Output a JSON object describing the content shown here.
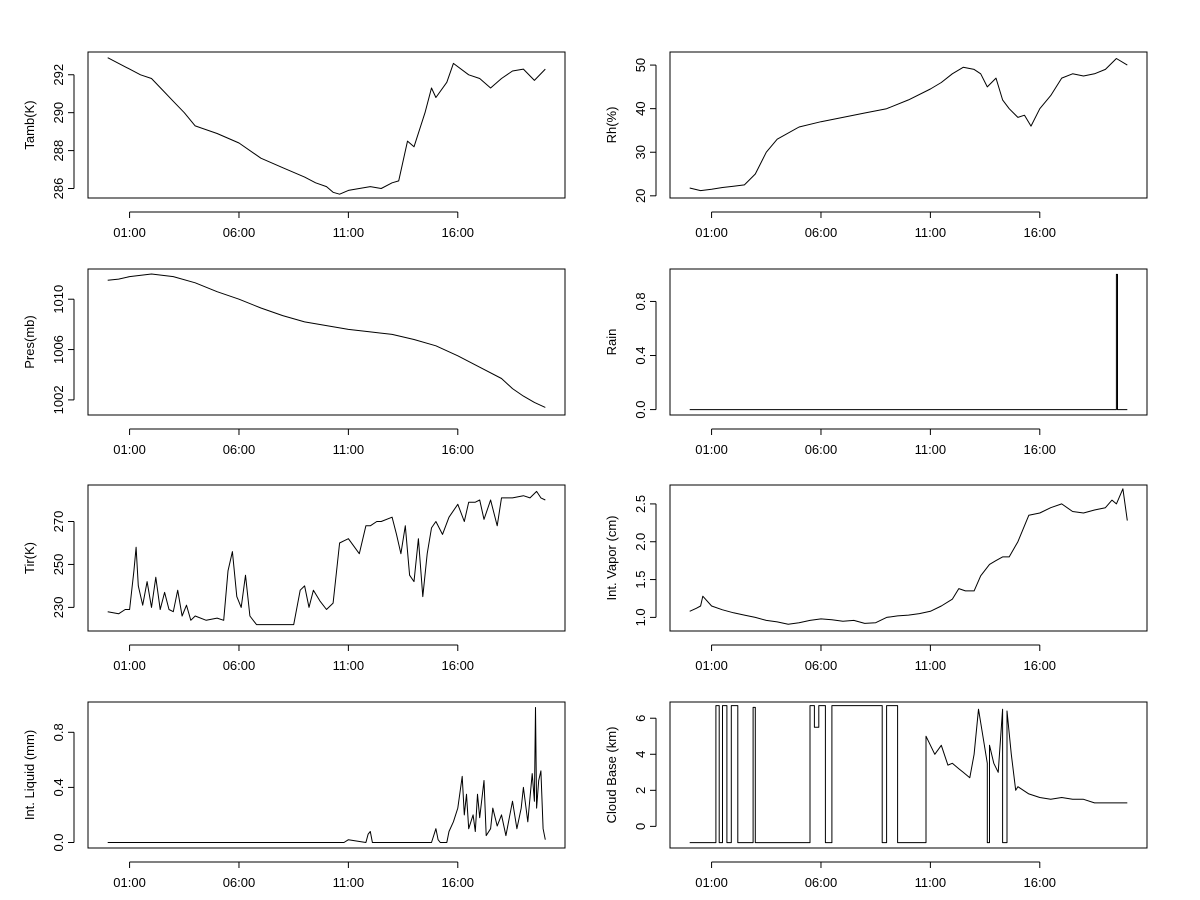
{
  "chart_data": [
    {
      "type": "line",
      "ylabel": "Tamb(K)",
      "x_ticks": [
        "01:00",
        "06:00",
        "11:00",
        "16:00"
      ],
      "y_ticks": [
        "286",
        "288",
        "290",
        "292"
      ],
      "ylim": [
        285.5,
        293.2
      ],
      "series": [
        {
          "x": [
            0.0,
            1.0,
            1.5,
            2.0,
            2.5,
            3.0,
            3.5,
            4.0,
            5.0,
            6.0,
            7.0,
            8.0,
            9.0,
            9.5,
            10.0,
            10.3,
            10.6,
            11.0,
            11.5,
            12.0,
            12.5,
            13.0,
            13.3,
            13.7,
            14.0,
            14.5,
            14.8,
            15.0,
            15.5,
            15.8,
            16.5,
            17.0,
            17.5,
            18.0,
            18.5,
            19.0,
            19.5,
            20.0
          ],
          "y": [
            292.9,
            292.3,
            292.0,
            291.8,
            291.2,
            290.6,
            290.0,
            289.3,
            288.9,
            288.4,
            287.6,
            287.1,
            286.6,
            286.3,
            286.1,
            285.8,
            285.7,
            285.9,
            286.0,
            286.1,
            286.0,
            286.3,
            286.4,
            288.5,
            288.2,
            290.0,
            291.3,
            290.8,
            291.6,
            292.6,
            292.0,
            291.8,
            291.3,
            291.8,
            292.2,
            292.3,
            291.7,
            292.3
          ]
        }
      ]
    },
    {
      "type": "line",
      "ylabel": "Rh(%)",
      "x_ticks": [
        "01:00",
        "06:00",
        "11:00",
        "16:00"
      ],
      "y_ticks": [
        "20",
        "30",
        "40",
        "50"
      ],
      "ylim": [
        19.5,
        53
      ],
      "series": [
        {
          "x": [
            0.0,
            0.5,
            1.0,
            1.5,
            2.0,
            2.5,
            3.0,
            3.5,
            4.0,
            5.0,
            6.0,
            7.0,
            8.0,
            9.0,
            10.0,
            11.0,
            11.5,
            12.0,
            12.5,
            13.0,
            13.3,
            13.6,
            14.0,
            14.3,
            14.6,
            15.0,
            15.3,
            15.6,
            16.0,
            16.5,
            17.0,
            17.5,
            18.0,
            18.5,
            19.0,
            19.5,
            20.0
          ],
          "y": [
            21.8,
            21.2,
            21.5,
            21.9,
            22.2,
            22.5,
            25.0,
            30.0,
            33.0,
            35.8,
            37.0,
            38.0,
            39.0,
            40.0,
            42.0,
            44.5,
            46.0,
            48.0,
            49.5,
            49.0,
            48.0,
            45.0,
            47.0,
            42.0,
            40.0,
            38.0,
            38.5,
            36.0,
            40.0,
            43.0,
            47.0,
            48.0,
            47.5,
            48.0,
            49.0,
            51.5,
            50.0
          ]
        }
      ]
    },
    {
      "type": "line",
      "ylabel": "Pres(mb)",
      "x_ticks": [
        "01:00",
        "06:00",
        "11:00",
        "16:00"
      ],
      "y_ticks": [
        "1002",
        "1006",
        "1010"
      ],
      "ylim": [
        1000.8,
        1012.4
      ],
      "series": [
        {
          "x": [
            0.0,
            0.5,
            1.0,
            2.0,
            3.0,
            4.0,
            5.0,
            6.0,
            7.0,
            8.0,
            9.0,
            10.0,
            11.0,
            12.0,
            13.0,
            14.0,
            15.0,
            16.0,
            17.0,
            18.0,
            18.5,
            19.0,
            19.5,
            20.0
          ],
          "y": [
            1011.5,
            1011.6,
            1011.8,
            1012.0,
            1011.8,
            1011.3,
            1010.6,
            1010.0,
            1009.3,
            1008.7,
            1008.2,
            1007.9,
            1007.6,
            1007.4,
            1007.2,
            1006.8,
            1006.3,
            1005.5,
            1004.6,
            1003.7,
            1002.9,
            1002.3,
            1001.8,
            1001.4
          ]
        }
      ]
    },
    {
      "type": "line",
      "ylabel": "Rain",
      "x_ticks": [
        "01:00",
        "06:00",
        "11:00",
        "16:00"
      ],
      "y_ticks": [
        "0.0",
        "0.4",
        "0.8"
      ],
      "ylim": [
        -0.04,
        1.04
      ],
      "series": [
        {
          "x": [
            0.0,
            19.5,
            19.5,
            19.55,
            19.55,
            20.0
          ],
          "y": [
            0.0,
            0.0,
            1.0,
            1.0,
            0.0,
            0.0
          ]
        }
      ]
    },
    {
      "type": "line",
      "ylabel": "Tir(K)",
      "x_ticks": [
        "01:00",
        "06:00",
        "11:00",
        "16:00"
      ],
      "y_ticks": [
        "230",
        "250",
        "270"
      ],
      "ylim": [
        219,
        287
      ],
      "series": [
        {
          "x": [
            0.0,
            0.5,
            0.8,
            1.0,
            1.2,
            1.3,
            1.4,
            1.6,
            1.8,
            2.0,
            2.2,
            2.4,
            2.6,
            2.8,
            3.0,
            3.2,
            3.4,
            3.6,
            3.8,
            4.0,
            4.5,
            5.0,
            5.3,
            5.5,
            5.7,
            5.9,
            6.1,
            6.3,
            6.5,
            6.8,
            7.0,
            7.5,
            8.0,
            8.5,
            8.8,
            9.0,
            9.2,
            9.4,
            9.7,
            10.0,
            10.3,
            10.6,
            10.8,
            11.0,
            11.5,
            11.8,
            12.0,
            12.3,
            12.5,
            13.0,
            13.2,
            13.4,
            13.6,
            13.8,
            14.0,
            14.2,
            14.4,
            14.6,
            14.8,
            15.0,
            15.3,
            15.6,
            16.0,
            16.3,
            16.5,
            16.8,
            17.0,
            17.2,
            17.5,
            17.8,
            18.0,
            18.5,
            19.0,
            19.3,
            19.6,
            19.8,
            20.0
          ],
          "y": [
            228,
            227,
            229,
            229,
            247,
            258,
            240,
            231,
            242,
            230,
            244,
            229,
            237,
            229,
            228,
            238,
            226,
            231,
            224,
            226,
            224,
            225,
            224,
            247,
            256,
            235,
            230,
            245,
            226,
            222,
            222,
            222,
            222,
            222,
            238,
            240,
            230,
            238,
            233,
            229,
            232,
            260,
            261,
            262,
            255,
            268,
            268,
            270,
            270,
            272,
            264,
            255,
            268,
            245,
            242,
            262,
            235,
            255,
            267,
            270,
            264,
            272,
            278,
            270,
            279,
            279,
            280,
            271,
            280,
            268,
            281,
            281,
            282,
            281,
            284,
            281,
            280
          ]
        }
      ]
    },
    {
      "type": "line",
      "ylabel": "Int. Vapor (cm)",
      "x_ticks": [
        "01:00",
        "06:00",
        "11:00",
        "16:00"
      ],
      "y_ticks": [
        "1.0",
        "1.5",
        "2.0",
        "2.5"
      ],
      "ylim": [
        0.82,
        2.75
      ],
      "series": [
        {
          "x": [
            0.0,
            0.3,
            0.5,
            0.6,
            1.0,
            1.5,
            2.0,
            2.5,
            3.0,
            3.5,
            4.0,
            4.5,
            5.0,
            5.5,
            6.0,
            6.5,
            7.0,
            7.5,
            8.0,
            8.5,
            9.0,
            9.5,
            10.0,
            10.5,
            11.0,
            11.5,
            12.0,
            12.3,
            12.6,
            13.0,
            13.3,
            13.7,
            14.0,
            14.3,
            14.6,
            15.0,
            15.5,
            16.0,
            16.5,
            17.0,
            17.5,
            18.0,
            18.5,
            19.0,
            19.3,
            19.5,
            19.8,
            20.0
          ],
          "y": [
            1.08,
            1.12,
            1.15,
            1.28,
            1.15,
            1.1,
            1.06,
            1.03,
            1.0,
            0.96,
            0.94,
            0.91,
            0.93,
            0.96,
            0.98,
            0.97,
            0.95,
            0.96,
            0.92,
            0.93,
            1.0,
            1.02,
            1.03,
            1.05,
            1.08,
            1.15,
            1.24,
            1.38,
            1.35,
            1.35,
            1.55,
            1.7,
            1.75,
            1.8,
            1.8,
            2.0,
            2.35,
            2.38,
            2.45,
            2.5,
            2.4,
            2.38,
            2.42,
            2.45,
            2.55,
            2.5,
            2.7,
            2.28
          ]
        }
      ]
    },
    {
      "type": "line",
      "ylabel": "Int. Liquid (mm)",
      "x_ticks": [
        "01:00",
        "06:00",
        "11:00",
        "16:00"
      ],
      "y_ticks": [
        "0.0",
        "0.4",
        "0.8"
      ],
      "ylim": [
        -0.04,
        1.02
      ],
      "series": [
        {
          "x": [
            0.0,
            10.8,
            11.0,
            11.8,
            11.9,
            12.0,
            12.1,
            14.8,
            14.9,
            15.0,
            15.1,
            15.2,
            15.5,
            15.6,
            15.8,
            16.0,
            16.2,
            16.3,
            16.4,
            16.5,
            16.7,
            16.8,
            16.9,
            17.0,
            17.2,
            17.3,
            17.5,
            17.6,
            17.8,
            18.0,
            18.2,
            18.5,
            18.7,
            18.9,
            19.0,
            19.2,
            19.4,
            19.5,
            19.55,
            19.6,
            19.7,
            19.8,
            19.9,
            20.0
          ],
          "y": [
            0.0,
            0.0,
            0.02,
            0.0,
            0.06,
            0.08,
            0.0,
            0.0,
            0.05,
            0.1,
            0.02,
            0.0,
            0.0,
            0.08,
            0.15,
            0.25,
            0.48,
            0.2,
            0.35,
            0.1,
            0.2,
            0.08,
            0.35,
            0.18,
            0.45,
            0.05,
            0.1,
            0.25,
            0.12,
            0.2,
            0.05,
            0.3,
            0.1,
            0.25,
            0.4,
            0.15,
            0.5,
            0.3,
            0.98,
            0.25,
            0.45,
            0.52,
            0.1,
            0.02
          ]
        }
      ]
    },
    {
      "type": "line",
      "ylabel": "Cloud Base (km)",
      "x_ticks": [
        "01:00",
        "06:00",
        "11:00",
        "16:00"
      ],
      "y_ticks": [
        "0",
        "2",
        "4",
        "6"
      ],
      "ylim": [
        -1.2,
        6.9
      ],
      "series": [
        {
          "x": [
            0.0,
            1.2,
            1.2,
            1.35,
            1.35,
            1.5,
            1.5,
            1.7,
            1.7,
            1.9,
            1.9,
            2.2,
            2.2,
            2.9,
            2.9,
            3.0,
            3.0,
            5.5,
            5.5,
            5.7,
            5.7,
            5.9,
            5.9,
            6.2,
            6.2,
            6.5,
            6.5,
            8.8,
            8.8,
            9.0,
            9.0,
            9.3,
            9.3,
            9.5,
            9.5,
            10.8,
            10.8,
            11.2,
            11.5,
            11.8,
            12.0,
            12.3,
            12.5,
            12.8,
            13.0,
            13.2,
            13.4,
            13.6,
            13.6,
            13.7,
            13.7,
            13.9,
            14.1,
            14.3,
            14.3,
            14.5,
            14.5,
            14.7,
            14.9,
            15.0,
            15.5,
            16.0,
            16.5,
            17.0,
            17.5,
            18.0,
            18.5,
            19.0,
            19.5,
            20.0
          ],
          "y": [
            -0.9,
            -0.9,
            6.7,
            6.7,
            -0.9,
            -0.9,
            6.7,
            6.7,
            -0.9,
            -0.9,
            6.7,
            6.7,
            -0.9,
            -0.9,
            6.6,
            6.6,
            -0.9,
            -0.9,
            6.7,
            6.7,
            5.5,
            5.5,
            6.7,
            6.7,
            -0.9,
            -0.9,
            6.7,
            6.7,
            -0.9,
            -0.9,
            6.7,
            6.7,
            6.7,
            6.7,
            -0.9,
            -0.9,
            5.0,
            4.0,
            4.5,
            3.4,
            3.5,
            3.2,
            3.0,
            2.7,
            4.0,
            6.5,
            5.0,
            3.5,
            -0.9,
            -0.9,
            4.5,
            3.5,
            3.0,
            6.5,
            -0.9,
            -0.9,
            6.4,
            4.0,
            2.0,
            2.2,
            1.8,
            1.6,
            1.5,
            1.6,
            1.5,
            1.5,
            1.3,
            1.3,
            1.3,
            1.3
          ]
        }
      ]
    }
  ]
}
